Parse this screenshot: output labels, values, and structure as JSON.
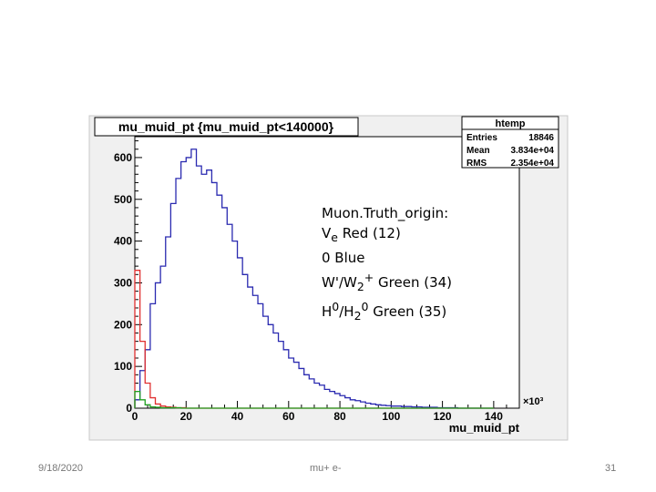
{
  "slide": {
    "date": "9/18/2020",
    "footer_center": "mu+ e-",
    "page_number": "31"
  },
  "chart_data": {
    "type": "histogram",
    "title": "mu_muid_pt {mu_muid_pt<140000}",
    "xlabel": "mu_muid_pt",
    "x_exponent": "×10³",
    "xlim": [
      0,
      150
    ],
    "ylim": [
      0,
      650
    ],
    "x_ticks": [
      0,
      20,
      40,
      60,
      80,
      100,
      120,
      140
    ],
    "y_ticks": [
      0,
      100,
      200,
      300,
      400,
      500,
      600
    ],
    "stats_box": {
      "name": "htemp",
      "rows": [
        {
          "label": "Entries",
          "value": "18846"
        },
        {
          "label": "Mean",
          "value": "3.834e+04"
        },
        {
          "label": "RMS",
          "value": "2.354e+04"
        }
      ]
    },
    "bin_width": 2,
    "series": [
      {
        "color": "#2a2ab0",
        "values": [
          20,
          90,
          140,
          250,
          300,
          340,
          410,
          490,
          550,
          590,
          600,
          620,
          580,
          560,
          570,
          540,
          510,
          480,
          440,
          400,
          360,
          320,
          290,
          270,
          250,
          220,
          200,
          180,
          160,
          140,
          120,
          110,
          95,
          80,
          70,
          60,
          55,
          45,
          40,
          35,
          30,
          25,
          20,
          18,
          15,
          12,
          10,
          8,
          7,
          6,
          5,
          5,
          4,
          4,
          3,
          3,
          2,
          2,
          2,
          1,
          1,
          1,
          1,
          0,
          0,
          0,
          0,
          0,
          0,
          0
        ]
      },
      {
        "color": "#e03030",
        "values": [
          330,
          160,
          60,
          25,
          10,
          5,
          3,
          2,
          1,
          1,
          0,
          0,
          0,
          0,
          0,
          0,
          0,
          0,
          0,
          0,
          0,
          0,
          0,
          0,
          0,
          0,
          0,
          0,
          0,
          0,
          0,
          0,
          0,
          0,
          0,
          0,
          0,
          0,
          0,
          0,
          0,
          0,
          0,
          0,
          0,
          0,
          0,
          0,
          0,
          0,
          0,
          0,
          0,
          0,
          0,
          0,
          0,
          0,
          0,
          0,
          0,
          0,
          0,
          0,
          0,
          0,
          0,
          0,
          0,
          0
        ]
      },
      {
        "color": "#20a020",
        "values": [
          40,
          20,
          8,
          3,
          2,
          1,
          1,
          1,
          1,
          0,
          0,
          0,
          0,
          0,
          0,
          0,
          0,
          0,
          0,
          0,
          0,
          0,
          0,
          0,
          0,
          0,
          0,
          0,
          0,
          0,
          0,
          0,
          0,
          0,
          0,
          0,
          0,
          0,
          0,
          0,
          0,
          0,
          0,
          0,
          0,
          0,
          0,
          0,
          0,
          0,
          0,
          0,
          0,
          0,
          0,
          0,
          0,
          0,
          0,
          0,
          0,
          0,
          0,
          0,
          0,
          0,
          0,
          0,
          0,
          0
        ]
      }
    ],
    "legend_lines": [
      {
        "text": "Muon.Truth_origin:"
      },
      {
        "prefix": "V",
        "sub": "e",
        "text": " Red (12)"
      },
      {
        "text": "0 Blue"
      },
      {
        "prefix": "W'/W",
        "sub": "2",
        "sup": "+",
        "text": " Green (34)"
      },
      {
        "prefix": "H",
        "sup0": "0",
        "mid": "/H",
        "sub": "2",
        "sup": "0",
        "text": " Green (35)"
      }
    ]
  }
}
